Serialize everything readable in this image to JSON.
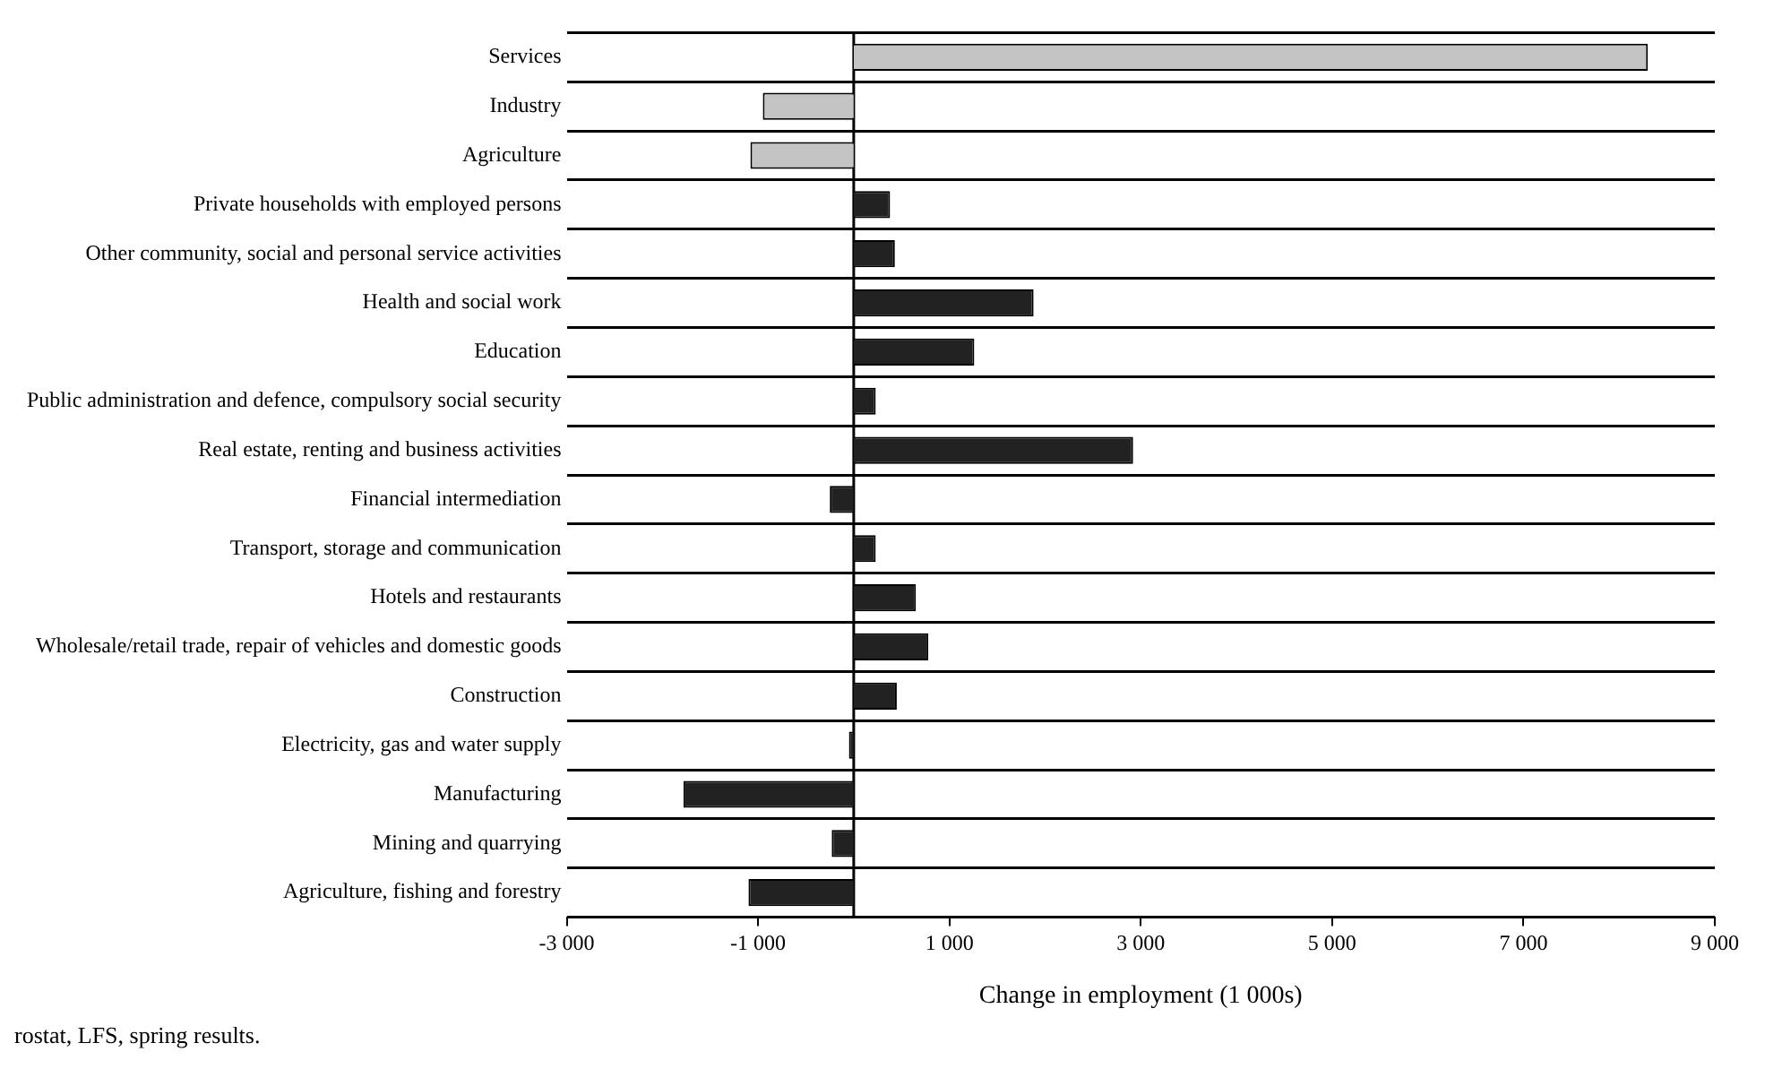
{
  "chart_data": {
    "type": "bar",
    "orientation": "horizontal",
    "xlabel": "Change in employment (1 000s)",
    "categories": [
      "Services",
      "Industry",
      "Agriculture",
      "Private households with employed persons",
      "Other community, social and personal service activities",
      "Health and social work",
      "Education",
      "Public administration and defence, compulsory social security",
      "Real estate, renting and business activities",
      "Financial intermediation",
      "Transport, storage and communication",
      "Hotels and restaurants",
      "Wholesale/retail trade, repair of vehicles and domestic goods",
      "Construction",
      "Electricity, gas and water supply",
      "Manufacturing",
      "Mining and quarrying",
      "Agriculture, fishing and forestry"
    ],
    "values": [
      8300,
      -950,
      -1080,
      380,
      430,
      1880,
      1260,
      230,
      2920,
      -250,
      230,
      650,
      780,
      450,
      -50,
      -1780,
      -230,
      -1100
    ],
    "colors": [
      "#c4c4c4",
      "#c4c4c4",
      "#c4c4c4",
      "#222222",
      "#222222",
      "#222222",
      "#222222",
      "#222222",
      "#222222",
      "#222222",
      "#222222",
      "#222222",
      "#222222",
      "#222222",
      "#222222",
      "#222222",
      "#222222",
      "#222222"
    ],
    "xlim": [
      -3000,
      9000
    ],
    "xticks": [
      {
        "value": -3000,
        "label": "-3 000"
      },
      {
        "value": -1000,
        "label": "-1 000"
      },
      {
        "value": 1000,
        "label": "1 000"
      },
      {
        "value": 3000,
        "label": "3 000"
      },
      {
        "value": 5000,
        "label": "5 000"
      },
      {
        "value": 7000,
        "label": "7 000"
      },
      {
        "value": 9000,
        "label": "9 000"
      }
    ],
    "ref_lines": [
      {
        "axis": "x",
        "value": 0,
        "color": "#000000"
      }
    ],
    "grid": "y",
    "legend": false,
    "annotations": [
      "rostat, LFS, spring results."
    ]
  }
}
